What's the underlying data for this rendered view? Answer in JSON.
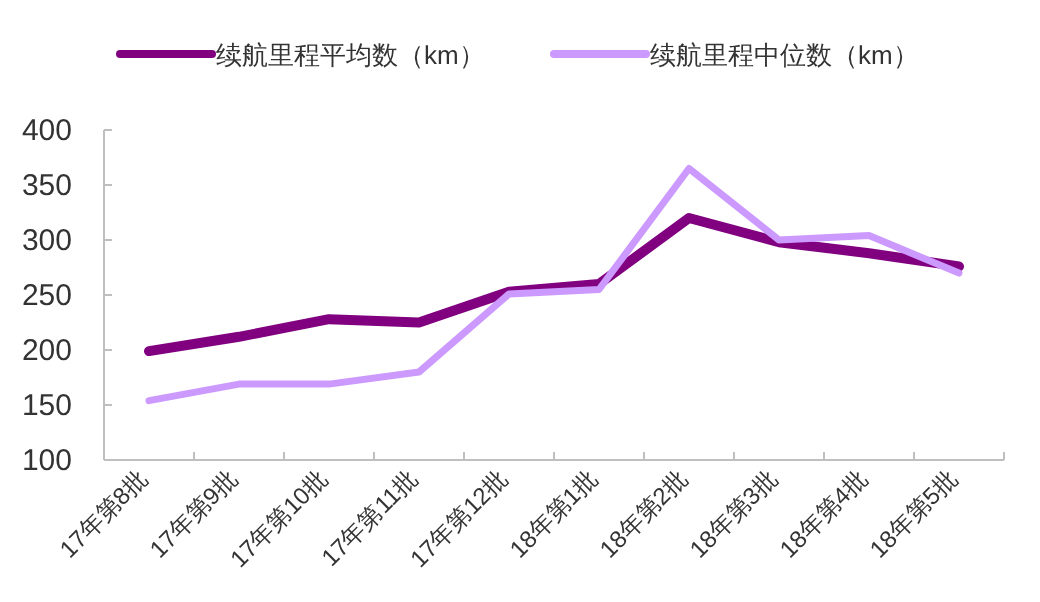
{
  "chart_data": {
    "type": "line",
    "categories": [
      "17年第8批",
      "17年第9批",
      "17年第10批",
      "17年第11批",
      "17年第12批",
      "18年第1批",
      "18年第2批",
      "18年第3批",
      "18年第4批",
      "18年第5批"
    ],
    "series": [
      {
        "name": "续航里程平均数（km）",
        "color": "#800080",
        "values": [
          199,
          212,
          228,
          225,
          253,
          260,
          320,
          298,
          288,
          276
        ]
      },
      {
        "name": "续航里程中位数（km）",
        "color": "#cc99ff",
        "values": [
          154,
          169,
          169,
          180,
          251,
          255,
          365,
          300,
          304,
          270
        ]
      }
    ],
    "ylim": [
      100,
      400
    ],
    "yticks": [
      100,
      150,
      200,
      250,
      300,
      350,
      400
    ],
    "grid": false,
    "legend": "top",
    "marker": "none",
    "line_style": "solid"
  }
}
